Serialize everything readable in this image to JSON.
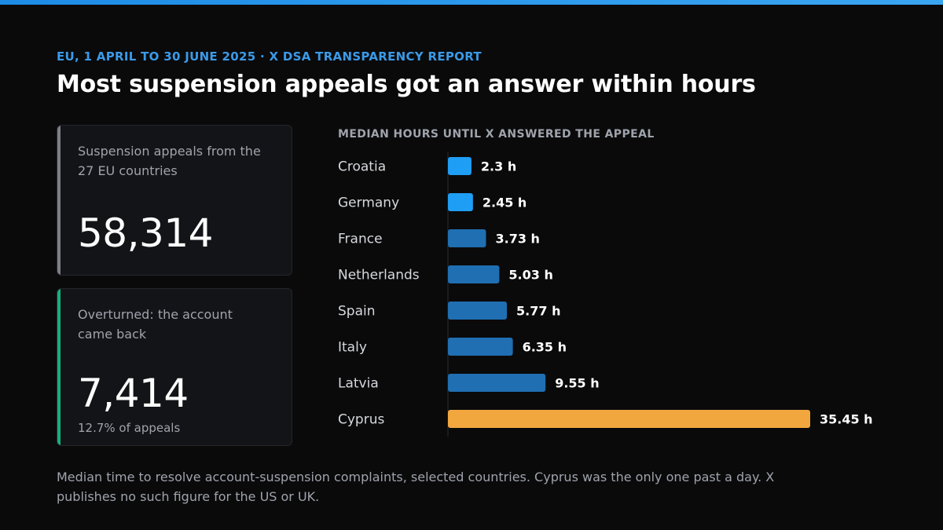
{
  "kicker": "EU, 1 APRIL TO 30 JUNE 2025 · X DSA TRANSPARENCY REPORT",
  "title": "Most suspension appeals got an answer within hours",
  "cards": [
    {
      "label": "Suspension appeals from the 27 EU countries",
      "value": "58,314",
      "sub": ""
    },
    {
      "label": "Overturned: the account came back",
      "value": "7,414",
      "sub": "12.7% of appeals"
    }
  ],
  "colors": {
    "blue": "#1f9ef5",
    "mid_blue": "#1f6fb2",
    "orange": "#f2a73e",
    "grey_accent": "#7d8088",
    "green_accent": "#16b07c"
  },
  "chart_data": {
    "type": "bar",
    "orientation": "horizontal",
    "title": "MEDIAN HOURS UNTIL X ANSWERED THE APPEAL",
    "categories": [
      "Croatia",
      "Germany",
      "France",
      "Netherlands",
      "Spain",
      "Italy",
      "Latvia",
      "Cyprus"
    ],
    "values": [
      2.3,
      2.45,
      3.73,
      5.03,
      5.77,
      6.35,
      9.55,
      35.45
    ],
    "value_labels": [
      "2.3 h",
      "2.45 h",
      "3.73 h",
      "5.03 h",
      "5.77 h",
      "6.35 h",
      "9.55 h",
      "35.45 h"
    ],
    "bar_colors": [
      "#1f9ef5",
      "#1f9ef5",
      "#1f6fb2",
      "#1f6fb2",
      "#1f6fb2",
      "#1f6fb2",
      "#1f6fb2",
      "#f2a73e"
    ],
    "xlim": [
      0,
      35.45
    ],
    "grid": false,
    "legend": "none"
  },
  "footnote": "Median time to resolve account-suspension complaints, selected countries. Cyprus was the only one past a day. X publishes no such figure for the US or UK."
}
